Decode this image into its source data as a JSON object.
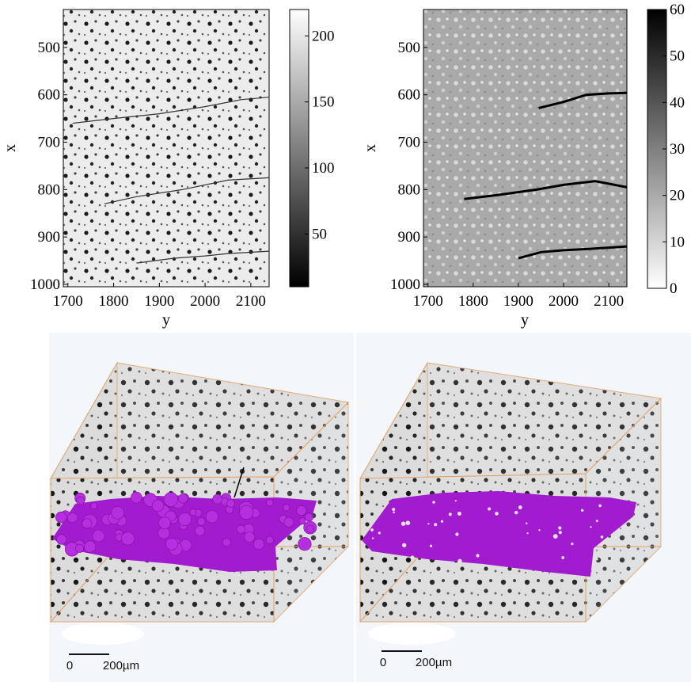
{
  "chart_data": [
    {
      "type": "heatmap",
      "colormap": "gray",
      "xlabel": "y",
      "ylabel": "x",
      "x_ticks": [
        "1700",
        "1800",
        "1900",
        "2000",
        "2100"
      ],
      "y_ticks": [
        "500",
        "600",
        "700",
        "800",
        "900",
        "1000"
      ],
      "xlim": [
        1690,
        2140
      ],
      "ylim": [
        1005,
        420
      ],
      "colorbar": {
        "ticks": [
          "50",
          "100",
          "150",
          "200"
        ],
        "range": [
          10,
          220
        ],
        "low_color": "#000000",
        "high_color": "#ffffff"
      },
      "cracks": [
        {
          "points": [
            [
              1710,
              660
            ],
            [
              1800,
              650
            ],
            [
              1900,
              640
            ],
            [
              2000,
              625
            ],
            [
              2080,
              610
            ],
            [
              2140,
              605
            ]
          ]
        },
        {
          "points": [
            [
              1780,
              830
            ],
            [
              1850,
              815
            ],
            [
              1950,
              800
            ],
            [
              2050,
              780
            ],
            [
              2140,
              775
            ]
          ]
        },
        {
          "points": [
            [
              1850,
              955
            ],
            [
              1930,
              945
            ],
            [
              2000,
              940
            ],
            [
              2050,
              935
            ],
            [
              2140,
              930
            ]
          ]
        }
      ]
    },
    {
      "type": "heatmap",
      "colormap": "gray_r",
      "xlabel": "y",
      "ylabel": "x",
      "x_ticks": [
        "1700",
        "1800",
        "1900",
        "2000",
        "2100"
      ],
      "y_ticks": [
        "500",
        "600",
        "700",
        "800",
        "900",
        "1000"
      ],
      "xlim": [
        1690,
        2140
      ],
      "ylim": [
        1005,
        420
      ],
      "colorbar": {
        "ticks": [
          "0",
          "10",
          "20",
          "30",
          "40",
          "50",
          "60"
        ],
        "range": [
          0,
          60
        ],
        "low_color": "#ffffff",
        "high_color": "#000000"
      },
      "cracks": [
        {
          "points": [
            [
              1945,
              628
            ],
            [
              2000,
              615
            ],
            [
              2050,
              600
            ],
            [
              2100,
              597
            ],
            [
              2140,
              596
            ]
          ]
        },
        {
          "points": [
            [
              1780,
              820
            ],
            [
              1850,
              812
            ],
            [
              1940,
              800
            ],
            [
              2000,
              790
            ],
            [
              2070,
              782
            ],
            [
              2140,
              795
            ]
          ]
        },
        {
          "points": [
            [
              1900,
              945
            ],
            [
              1950,
              932
            ],
            [
              2000,
              928
            ],
            [
              2060,
              925
            ],
            [
              2140,
              920
            ]
          ]
        }
      ]
    }
  ],
  "renders": [
    {
      "scalebar": {
        "start_label": "0",
        "end_label": "200µm"
      },
      "cluster_color": "#a21ccf",
      "cluster_style": "spheres",
      "has_arrow": true
    },
    {
      "scalebar": {
        "start_label": "0",
        "end_label": "200µm"
      },
      "cluster_color": "#a21ccf",
      "cluster_style": "sheet",
      "has_arrow": false
    }
  ]
}
